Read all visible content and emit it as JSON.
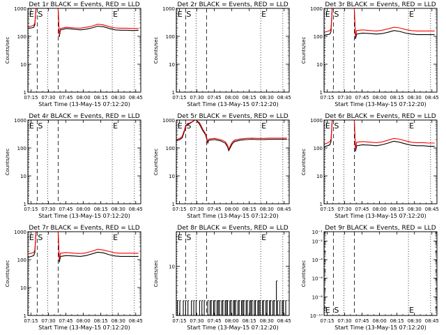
{
  "figure": {
    "xlabel": "Start Time (13-May-15 07:12:20)",
    "ylabel": "Counts/sec",
    "x_ticks": [
      "07:15",
      "07:30",
      "07:45",
      "08:00",
      "08:15",
      "08:30",
      "08:45"
    ],
    "x_tick_minutes": [
      2.67,
      17.67,
      32.67,
      47.67,
      62.67,
      77.67,
      92.67
    ],
    "series_colors": {
      "events": "#000000",
      "lld": "#ff0000"
    }
  },
  "markers": [
    {
      "label": "E",
      "minute": 0.5,
      "style": "dotted"
    },
    {
      "label": "S",
      "minute": 8.0,
      "style": "dashed"
    },
    {
      "label": "",
      "minute": 17.0,
      "style": "dotted"
    },
    {
      "label": "",
      "minute": 26.0,
      "style": "dashed"
    },
    {
      "label": "E",
      "minute": 72.5,
      "style": "dotted"
    },
    {
      "label": "",
      "minute": 91.5,
      "style": "dotted"
    }
  ],
  "chart_data": [
    {
      "type": "line",
      "title": "Det 1r BLACK = Events, RED = LLD",
      "yscale": "log",
      "ylim": [
        1,
        1000
      ],
      "y_tick_labels": [
        "1",
        "10",
        "100",
        "1000"
      ],
      "xlim": [
        0,
        97
      ],
      "series": [
        {
          "name": "Events",
          "color": "#000000",
          "x": [
            0,
            3,
            5,
            6,
            7,
            26,
            27,
            28,
            33,
            40,
            45,
            50,
            55,
            60,
            65,
            70,
            75,
            80,
            85,
            90,
            95
          ],
          "y": [
            190,
            200,
            210,
            260,
            1000,
            1000,
            95,
            170,
            190,
            180,
            170,
            180,
            200,
            230,
            220,
            190,
            170,
            165,
            165,
            160,
            165
          ]
        },
        {
          "name": "LLD",
          "color": "#ff0000",
          "x": [
            0,
            3,
            5,
            6,
            7,
            26,
            27,
            28,
            33,
            40,
            45,
            50,
            55,
            60,
            65,
            70,
            75,
            80,
            85,
            90,
            95
          ],
          "y": [
            220,
            230,
            250,
            300,
            1000,
            1000,
            110,
            190,
            210,
            200,
            195,
            210,
            230,
            270,
            255,
            220,
            200,
            195,
            195,
            190,
            190
          ]
        }
      ]
    },
    {
      "type": "line",
      "title": "Det 2r BLACK = Events, RED = LLD",
      "yscale": "log",
      "ylim": [
        1,
        1000
      ],
      "y_tick_labels": [
        "1",
        "10",
        "100",
        "1000"
      ],
      "xlim": [
        0,
        97
      ],
      "series": [
        {
          "name": "Events",
          "color": "#000000",
          "x": [],
          "y": []
        },
        {
          "name": "LLD",
          "color": "#ff0000",
          "x": [],
          "y": []
        }
      ]
    },
    {
      "type": "line",
      "title": "Det 3r BLACK = Events, RED = LLD",
      "yscale": "log",
      "ylim": [
        1,
        1000
      ],
      "y_tick_labels": [
        "1",
        "10",
        "100",
        "1000"
      ],
      "xlim": [
        0,
        97
      ],
      "series": [
        {
          "name": "Events",
          "color": "#000000",
          "x": [
            0,
            3,
            5,
            6,
            7,
            26,
            27,
            28,
            33,
            40,
            45,
            50,
            55,
            60,
            65,
            70,
            75,
            80,
            85,
            90,
            95
          ],
          "y": [
            110,
            115,
            120,
            150,
            1000,
            1000,
            80,
            120,
            130,
            125,
            120,
            125,
            140,
            160,
            150,
            130,
            120,
            115,
            115,
            115,
            115
          ]
        },
        {
          "name": "LLD",
          "color": "#ff0000",
          "x": [
            0,
            3,
            5,
            6,
            7,
            26,
            27,
            28,
            33,
            40,
            45,
            50,
            55,
            60,
            65,
            70,
            75,
            80,
            85,
            90,
            95
          ],
          "y": [
            140,
            150,
            160,
            190,
            1000,
            1000,
            100,
            160,
            170,
            160,
            155,
            165,
            185,
            210,
            200,
            175,
            160,
            155,
            155,
            155,
            155
          ]
        }
      ]
    },
    {
      "type": "line",
      "title": "Det 4r BLACK = Events, RED = LLD",
      "yscale": "log",
      "ylim": [
        1,
        1000
      ],
      "y_tick_labels": [
        "1",
        "10",
        "100",
        "1000"
      ],
      "xlim": [
        0,
        97
      ],
      "series": [
        {
          "name": "Events",
          "color": "#000000",
          "x": [],
          "y": []
        },
        {
          "name": "LLD",
          "color": "#ff0000",
          "x": [],
          "y": []
        }
      ]
    },
    {
      "type": "line",
      "title": "Det 5r BLACK = Events, RED = LLD",
      "yscale": "log",
      "ylim": [
        1,
        1000
      ],
      "y_tick_labels": [
        "1",
        "10",
        "100",
        "1000"
      ],
      "xlim": [
        0,
        97
      ],
      "series": [
        {
          "name": "Events",
          "color": "#000000",
          "x": [
            0,
            3,
            5,
            6,
            7,
            8,
            16,
            17,
            20,
            23,
            25,
            26,
            27,
            28,
            33,
            38,
            42,
            44,
            45,
            46,
            48,
            50,
            55,
            60,
            65,
            70,
            75,
            80,
            85,
            90,
            95
          ],
          "y": [
            180,
            200,
            230,
            300,
            400,
            600,
            1000,
            1000,
            700,
            400,
            300,
            220,
            150,
            190,
            200,
            180,
            150,
            110,
            80,
            95,
            140,
            170,
            190,
            200,
            205,
            200,
            200,
            205,
            205,
            205,
            205
          ]
        },
        {
          "name": "LLD",
          "color": "#ff0000",
          "x": [
            0,
            3,
            5,
            6,
            7,
            8,
            16,
            17,
            20,
            23,
            25,
            26,
            27,
            28,
            33,
            38,
            42,
            44,
            45,
            46,
            48,
            50,
            55,
            60,
            65,
            70,
            75,
            80,
            85,
            90,
            95
          ],
          "y": [
            200,
            220,
            260,
            340,
            450,
            650,
            1000,
            1000,
            800,
            450,
            330,
            250,
            170,
            210,
            220,
            200,
            170,
            125,
            90,
            110,
            160,
            190,
            210,
            220,
            225,
            220,
            220,
            225,
            225,
            225,
            225
          ]
        }
      ]
    },
    {
      "type": "line",
      "title": "Det 6r BLACK = Events, RED = LLD",
      "yscale": "log",
      "ylim": [
        1,
        1000
      ],
      "y_tick_labels": [
        "1",
        "10",
        "100",
        "1000"
      ],
      "xlim": [
        0,
        97
      ],
      "series": [
        {
          "name": "Events",
          "color": "#000000",
          "x": [
            0,
            3,
            5,
            6,
            7,
            26,
            27,
            28,
            33,
            40,
            45,
            50,
            55,
            60,
            65,
            70,
            75,
            80,
            85,
            90,
            95
          ],
          "y": [
            110,
            120,
            130,
            170,
            1000,
            1000,
            75,
            120,
            130,
            125,
            120,
            130,
            150,
            175,
            160,
            140,
            125,
            120,
            120,
            115,
            115
          ]
        },
        {
          "name": "LLD",
          "color": "#ff0000",
          "x": [
            0,
            3,
            5,
            6,
            7,
            26,
            27,
            28,
            33,
            40,
            45,
            50,
            55,
            60,
            65,
            70,
            75,
            80,
            85,
            90,
            95
          ],
          "y": [
            140,
            150,
            170,
            210,
            1000,
            1000,
            95,
            160,
            170,
            160,
            155,
            165,
            190,
            220,
            205,
            180,
            160,
            155,
            155,
            150,
            150
          ]
        }
      ]
    },
    {
      "type": "line",
      "title": "Det 7r BLACK = Events, RED = LLD",
      "yscale": "log",
      "ylim": [
        1,
        1000
      ],
      "y_tick_labels": [
        "1",
        "10",
        "100",
        "1000"
      ],
      "xlim": [
        0,
        97
      ],
      "series": [
        {
          "name": "Events",
          "color": "#000000",
          "x": [
            0,
            3,
            5,
            6,
            7,
            26,
            27,
            28,
            33,
            40,
            45,
            50,
            55,
            60,
            65,
            70,
            75,
            80,
            85,
            90,
            95
          ],
          "y": [
            120,
            130,
            140,
            180,
            1000,
            1000,
            80,
            130,
            140,
            135,
            130,
            140,
            160,
            185,
            175,
            150,
            135,
            130,
            130,
            130,
            130
          ]
        },
        {
          "name": "LLD",
          "color": "#ff0000",
          "x": [
            0,
            3,
            5,
            6,
            7,
            26,
            27,
            28,
            33,
            40,
            45,
            50,
            55,
            60,
            65,
            70,
            75,
            80,
            85,
            90,
            95
          ],
          "y": [
            160,
            170,
            180,
            220,
            1000,
            1000,
            100,
            170,
            180,
            170,
            165,
            175,
            200,
            235,
            220,
            195,
            175,
            170,
            170,
            170,
            170
          ]
        }
      ]
    },
    {
      "type": "line",
      "title": "Det 8r BLACK = Events, RED = LLD",
      "yscale": "log",
      "ylim": [
        1,
        50
      ],
      "y_tick_labels": [
        "1",
        "10"
      ],
      "xlim": [
        0,
        97
      ],
      "series": [
        {
          "name": "Events",
          "color": "#000000",
          "x": [
            0,
            1,
            2,
            3,
            4,
            5,
            6,
            7,
            8,
            9,
            10,
            11,
            12,
            13,
            14,
            15,
            16,
            17,
            18,
            19,
            20,
            21,
            22,
            23,
            24,
            25,
            26,
            27,
            28,
            29,
            30,
            31,
            32,
            33,
            34,
            35,
            36,
            37,
            38,
            39,
            40,
            41,
            42,
            43,
            44,
            45,
            46,
            47,
            48,
            49,
            50,
            51,
            52,
            53,
            54,
            55,
            56,
            57,
            58,
            59,
            60,
            61,
            62,
            63,
            64,
            65,
            66,
            67,
            68,
            69,
            70,
            71,
            72,
            73,
            74,
            75,
            76,
            77,
            78,
            79,
            80,
            81,
            82,
            83,
            84,
            85,
            86,
            87,
            88,
            89,
            90,
            91,
            92,
            93,
            94,
            95
          ],
          "y": [
            1,
            2,
            1,
            2,
            1,
            1,
            2,
            1,
            2,
            1,
            2,
            1,
            1,
            2,
            1,
            2,
            1,
            2,
            1,
            1,
            2,
            1,
            2,
            1,
            2,
            1,
            1,
            2,
            1,
            2,
            2,
            1,
            2,
            2,
            1,
            2,
            2,
            2,
            1,
            2,
            2,
            1,
            2,
            2,
            2,
            1,
            2,
            2,
            1,
            2,
            2,
            2,
            1,
            2,
            2,
            1,
            2,
            2,
            2,
            1,
            2,
            2,
            1,
            2,
            2,
            2,
            1,
            2,
            2,
            1,
            2,
            2,
            2,
            1,
            2,
            2,
            1,
            2,
            2,
            1,
            2,
            2,
            1,
            2,
            2,
            1,
            5,
            2,
            1,
            2,
            1,
            2,
            2,
            1,
            2,
            1
          ]
        }
      ]
    },
    {
      "type": "line",
      "title": "Det 9r BLACK = Events, RED = LLD",
      "yscale": "log",
      "ylim": [
        1e-10,
        0.1
      ],
      "y_tick_labels": [
        "10⁻¹⁰",
        "10⁻⁸",
        "10⁻⁶",
        "10⁻⁴",
        "10⁻²",
        "10⁻¹"
      ],
      "y_tick_values": [
        1e-10,
        1e-08,
        1e-06,
        0.0001,
        0.01,
        0.1
      ],
      "xlim": [
        0,
        97
      ],
      "series": [
        {
          "name": "Events",
          "color": "#000000",
          "x": [],
          "y": []
        },
        {
          "name": "LLD",
          "color": "#ff0000",
          "x": [],
          "y": []
        }
      ]
    }
  ]
}
